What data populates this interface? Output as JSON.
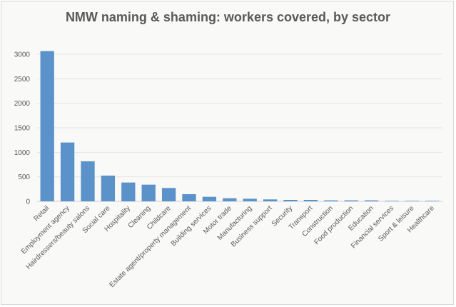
{
  "chart_data": {
    "type": "bar",
    "title": "NMW naming & shaming: workers covered, by sector",
    "xlabel": "",
    "ylabel": "",
    "ylim": [
      0,
      3000
    ],
    "yticks": [
      0,
      500,
      1000,
      1500,
      2000,
      2500,
      3000
    ],
    "grid": true,
    "color": "#5b92c9",
    "categories": [
      "Retail",
      "Employment agency",
      "Hairdressers/beauty salons",
      "Social care",
      "Hospitality",
      "Cleaning",
      "Childcare",
      "Estate agent/property management",
      "Building services",
      "Motor trade",
      "Manufacturing",
      "Business support",
      "Security",
      "Transport",
      "Construction",
      "Food production",
      "Education",
      "Financial services",
      "Sport & leisure",
      "Healthcare"
    ],
    "values": [
      3065,
      1200,
      817,
      525,
      384,
      340,
      272,
      146,
      92,
      63,
      53,
      39,
      29,
      29,
      20,
      20,
      20,
      10,
      10,
      10
    ]
  }
}
